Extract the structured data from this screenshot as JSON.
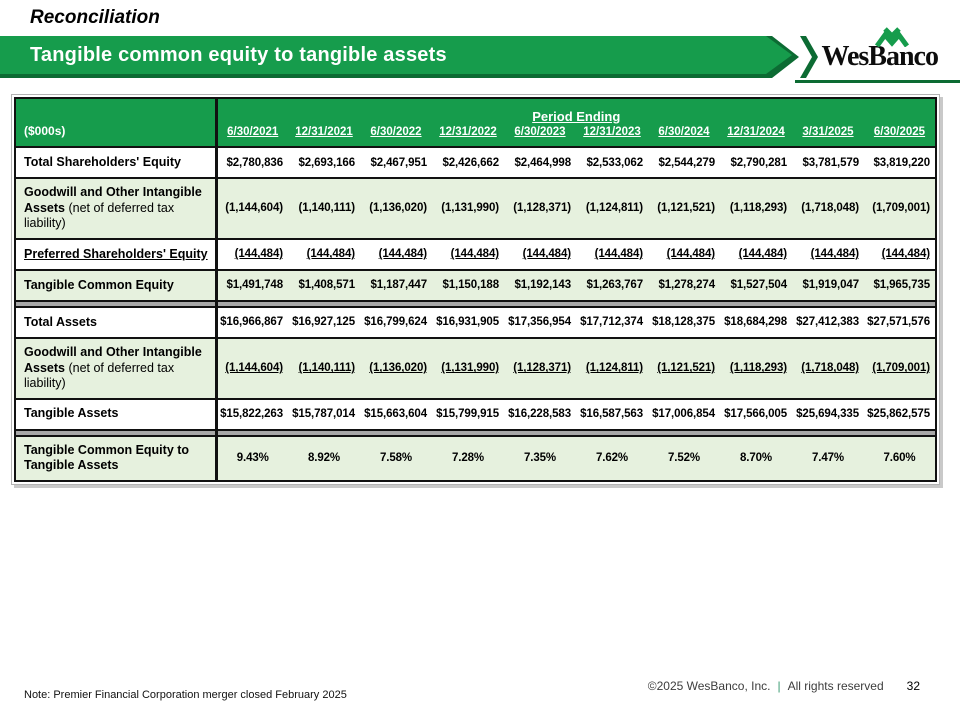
{
  "page": {
    "eyebrow": "Reconciliation",
    "banner_title": "Tangible common equity to tangible assets",
    "logo_text": "WesBanco",
    "note": "Note: Premier Financial Corporation merger closed February 2025",
    "footer": {
      "copyright": "©2025 WesBanco, Inc.",
      "divider": "|",
      "rights": "All rights reserved",
      "page_number": "32"
    }
  },
  "colors": {
    "brand_green": "#169c4c",
    "dark_green": "#0c6b33",
    "row_green": "#e6f1de",
    "spacer_gray": "#a8a8a8",
    "footer_pipe_green": "#3b9b72"
  },
  "table": {
    "period_ending_label": "Period Ending",
    "units_label": "($000s)",
    "columns": [
      "6/30/2021",
      "12/31/2021",
      "6/30/2022",
      "12/31/2022",
      "6/30/2023",
      "12/31/2023",
      "6/30/2024",
      "12/31/2024",
      "3/31/2025",
      "6/30/2025"
    ],
    "rows": [
      {
        "type": "data",
        "bg": "white",
        "label": "Total Shareholders' Equity",
        "values": [
          "$2,780,836",
          "$2,693,166",
          "$2,467,951",
          "$2,426,662",
          "$2,464,998",
          "$2,533,062",
          "$2,544,279",
          "$2,790,281",
          "$3,781,579",
          "$3,819,220"
        ]
      },
      {
        "type": "data",
        "bg": "green",
        "label": "Goodwill and Other Intangible Assets",
        "label_note": "(net of deferred tax liability)",
        "values": [
          "(1,144,604)",
          "(1,140,111)",
          "(1,136,020)",
          "(1,131,990)",
          "(1,128,371)",
          "(1,124,811)",
          "(1,121,521)",
          "(1,118,293)",
          "(1,718,048)",
          "(1,709,001)"
        ]
      },
      {
        "type": "data",
        "bg": "white",
        "label": "Preferred Shareholders' Equity",
        "underline_label": true,
        "underline_values": true,
        "values": [
          "(144,484)",
          "(144,484)",
          "(144,484)",
          "(144,484)",
          "(144,484)",
          "(144,484)",
          "(144,484)",
          "(144,484)",
          "(144,484)",
          "(144,484)"
        ]
      },
      {
        "type": "data",
        "bg": "green",
        "label": "Tangible Common Equity",
        "values": [
          "$1,491,748",
          "$1,408,571",
          "$1,187,447",
          "$1,150,188",
          "$1,192,143",
          "$1,263,767",
          "$1,278,274",
          "$1,527,504",
          "$1,919,047",
          "$1,965,735"
        ]
      },
      {
        "type": "spacer"
      },
      {
        "type": "data",
        "bg": "white",
        "label": "Total Assets",
        "values": [
          "$16,966,867",
          "$16,927,125",
          "$16,799,624",
          "$16,931,905",
          "$17,356,954",
          "$17,712,374",
          "$18,128,375",
          "$18,684,298",
          "$27,412,383",
          "$27,571,576"
        ]
      },
      {
        "type": "data",
        "bg": "green",
        "label": "Goodwill and Other Intangible Assets",
        "label_note": "(net of deferred tax liability)",
        "underline_values": true,
        "values": [
          "(1,144,604)",
          "(1,140,111)",
          "(1,136,020)",
          "(1,131,990)",
          "(1,128,371)",
          "(1,124,811)",
          "(1,121,521)",
          "(1,118,293)",
          "(1,718,048)",
          "(1,709,001)"
        ]
      },
      {
        "type": "data",
        "bg": "white",
        "label": "Tangible Assets",
        "values": [
          "$15,822,263",
          "$15,787,014",
          "$15,663,604",
          "$15,799,915",
          "$16,228,583",
          "$16,587,563",
          "$17,006,854",
          "$17,566,005",
          "$25,694,335",
          "$25,862,575"
        ]
      },
      {
        "type": "spacer"
      },
      {
        "type": "data",
        "bg": "green",
        "label": "Tangible Common Equity to Tangible Assets",
        "align": "center",
        "values": [
          "9.43%",
          "8.92%",
          "7.58%",
          "7.28%",
          "7.35%",
          "7.62%",
          "7.52%",
          "8.70%",
          "7.47%",
          "7.60%"
        ]
      }
    ]
  }
}
